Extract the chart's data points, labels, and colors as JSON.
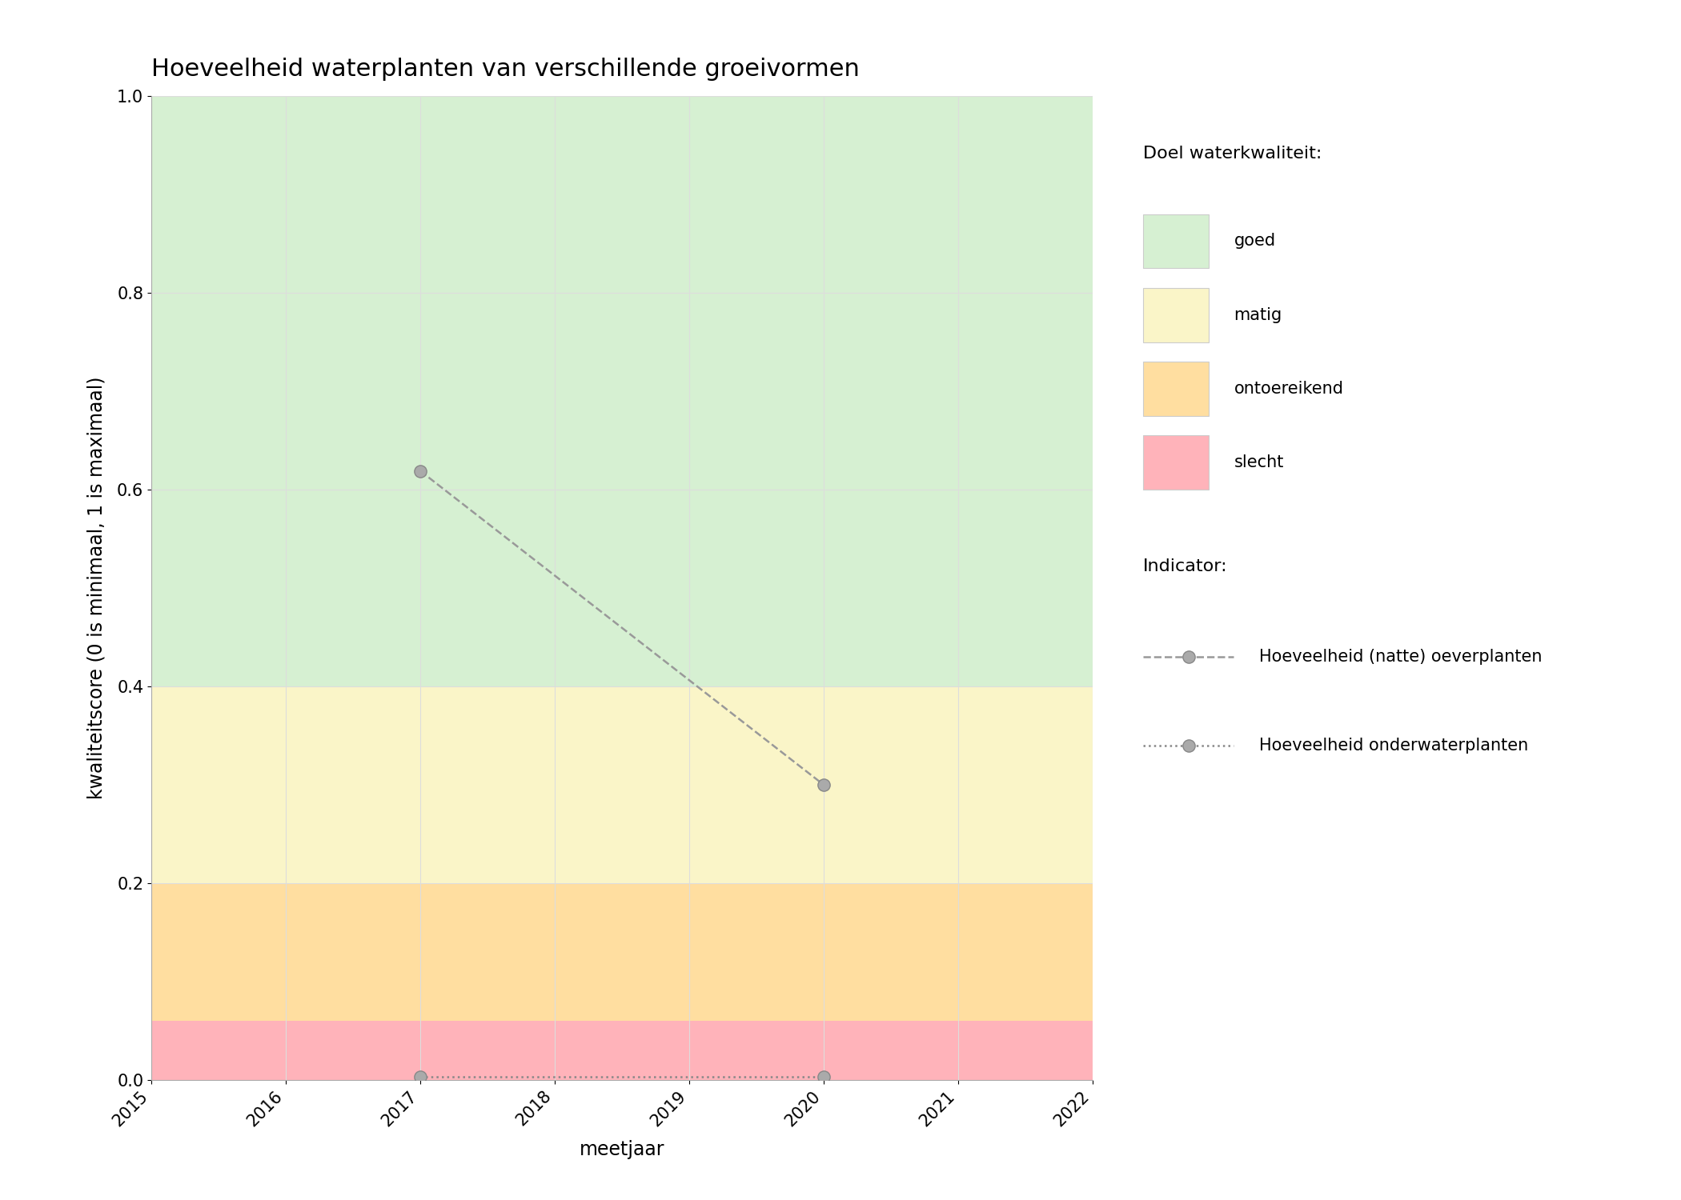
{
  "title": "Hoeveelheid waterplanten van verschillende groeivormen",
  "xlabel": "meetjaar",
  "ylabel": "kwaliteitscore (0 is minimaal, 1 is maximaal)",
  "xlim": [
    2015,
    2022
  ],
  "ylim": [
    0.0,
    1.0
  ],
  "xticks": [
    2015,
    2016,
    2017,
    2018,
    2019,
    2020,
    2021,
    2022
  ],
  "yticks": [
    0.0,
    0.2,
    0.4,
    0.6,
    0.8,
    1.0
  ],
  "background_bands": [
    {
      "ymin": 0.0,
      "ymax": 0.06,
      "color": "#ffb3ba",
      "label": "slecht"
    },
    {
      "ymin": 0.06,
      "ymax": 0.2,
      "color": "#ffdea0",
      "label": "ontoereikend"
    },
    {
      "ymin": 0.2,
      "ymax": 0.4,
      "color": "#faf5c8",
      "label": "matig"
    },
    {
      "ymin": 0.4,
      "ymax": 1.0,
      "color": "#d6f0d2",
      "label": "goed"
    }
  ],
  "series": [
    {
      "label": "Hoeveelheid (natte) oeverplanten",
      "x": [
        2017,
        2020
      ],
      "y": [
        0.619,
        0.3
      ],
      "color": "#999999",
      "linestyle": "--",
      "linewidth": 1.8,
      "marker": "o",
      "markersize": 11,
      "markerfacecolor": "#aaaaaa",
      "markeredgecolor": "#888888",
      "markeredgewidth": 1.0
    },
    {
      "label": "Hoeveelheid onderwaterplanten",
      "x": [
        2017,
        2020
      ],
      "y": [
        0.003,
        0.003
      ],
      "color": "#888888",
      "linestyle": ":",
      "linewidth": 1.8,
      "marker": "o",
      "markersize": 11,
      "markerfacecolor": "#aaaaaa",
      "markeredgecolor": "#888888",
      "markeredgewidth": 1.0
    }
  ],
  "legend_quality_title": "Doel waterkwaliteit:",
  "legend_indicator_title": "Indicator:",
  "legend_quality_items": [
    {
      "label": "goed",
      "color": "#d6f0d2"
    },
    {
      "label": "matig",
      "color": "#faf5c8"
    },
    {
      "label": "ontoereikend",
      "color": "#ffdea0"
    },
    {
      "label": "slecht",
      "color": "#ffb3ba"
    }
  ],
  "background_color": "#ffffff",
  "grid_color": "#dddddd",
  "title_fontsize": 22,
  "label_fontsize": 17,
  "tick_fontsize": 15,
  "legend_fontsize": 15
}
